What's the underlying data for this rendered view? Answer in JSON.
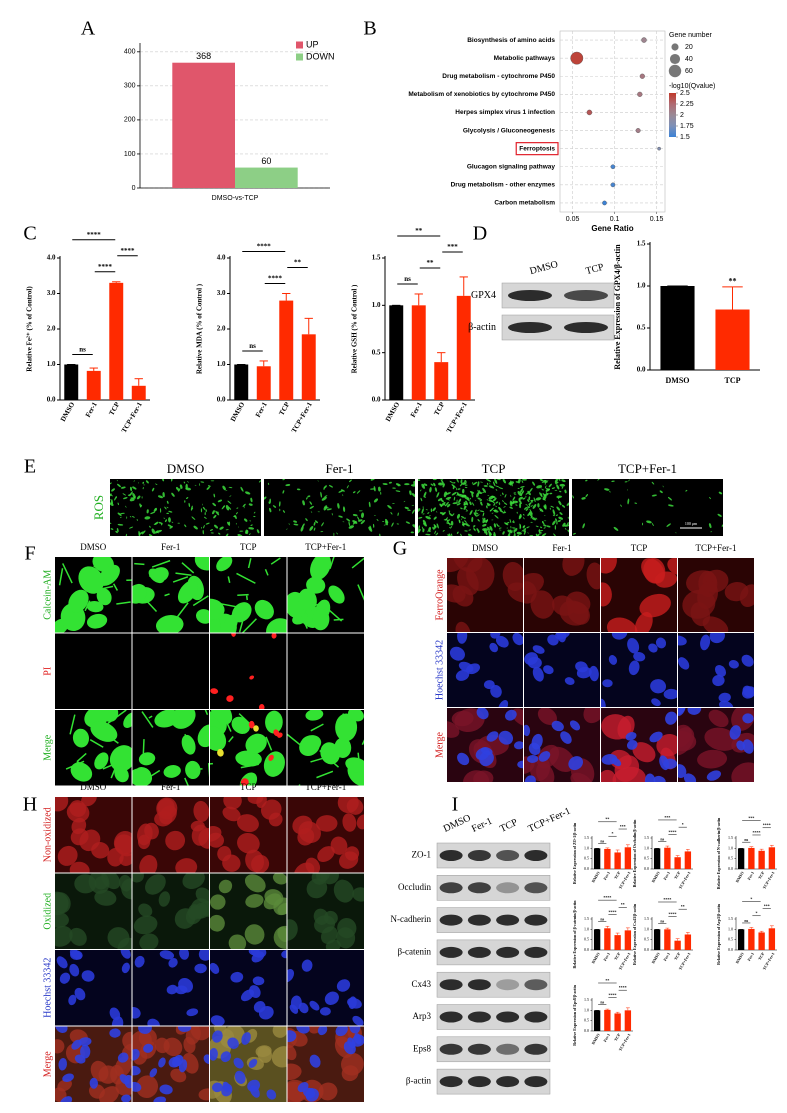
{
  "figure": {
    "panel_letters": [
      "A",
      "B",
      "C",
      "D",
      "E",
      "F",
      "G",
      "H",
      "I"
    ],
    "D": {
      "columns": [
        "DMSO",
        "TCP"
      ],
      "rows": [
        "GPX4",
        "β-actin"
      ]
    },
    "E": {
      "columns": [
        "DMSO",
        "Fer-1",
        "TCP",
        "TCP+Fer-1"
      ],
      "rows": [
        "ROS"
      ],
      "scale": "100 μm"
    },
    "F": {
      "columns": [
        "DMSO",
        "Fer-1",
        "TCP",
        "TCP+Fer-1"
      ],
      "rows": [
        "Calcein-AM",
        "PI",
        "Merge"
      ]
    },
    "G": {
      "columns": [
        "DMSO",
        "Fer-1",
        "TCP",
        "TCP+Fer-1"
      ],
      "rows": [
        "FerroOrange",
        "Hoechst 33342",
        "Merge"
      ]
    },
    "H": {
      "columns": [
        "DMSO",
        "Fer-1",
        "TCP",
        "TCP+Fer-1"
      ],
      "rows": [
        "Non-oxidized",
        "Oxidized",
        "Hoechst 33342",
        "Merge"
      ]
    },
    "I": {
      "columns": [
        "DMSO",
        "Fer-1",
        "TCP",
        "TCP+Fer-1"
      ],
      "rows": [
        "ZO-1",
        "Occludin",
        "N-cadherin",
        "β-catenin",
        "Cx43",
        "Arp3",
        "Eps8",
        "β-actin"
      ]
    }
  },
  "chart_data": [
    {
      "type": "bar",
      "categories": [
        "DMSO-vs-TCP"
      ],
      "series": [
        {
          "name": "UP",
          "color": "#e0566b",
          "values": [
            368
          ]
        },
        {
          "name": "DOWN",
          "color": "#8dcf86",
          "values": [
            60
          ]
        }
      ],
      "ylim": [
        0,
        420
      ],
      "yticks": [
        0,
        100,
        200,
        300,
        400
      ],
      "grid": true,
      "show_values": true,
      "legend": "top-right"
    },
    {
      "type": "bubble",
      "x_label": "Gene Ratio",
      "categories": [
        "Biosynthesis of amino acids",
        "Metabolic pathways",
        "Drug metabolism - cytochrome P450",
        "Metabolism of xenobiotics by cytochrome P450",
        "Herpes simplex virus 1 infection",
        "Glycolysis / Gluconeogenesis",
        "Ferroptosis",
        "Glucagon signaling pathway",
        "Drug metabolism - other enzymes",
        "Carbon metabolism"
      ],
      "x": [
        0.135,
        0.055,
        0.133,
        0.13,
        0.07,
        0.128,
        0.153,
        0.098,
        0.098,
        0.088
      ],
      "sizes": [
        10,
        60,
        9,
        9,
        10,
        8,
        4,
        7,
        7,
        7
      ],
      "qvalues": [
        2.05,
        2.45,
        2.15,
        2.15,
        2.35,
        2.1,
        1.8,
        1.55,
        1.55,
        1.5
      ],
      "xlim": [
        0.035,
        0.16
      ],
      "xticks": [
        0.05,
        0.1,
        0.15
      ],
      "grid": true,
      "highlight": 6,
      "size_legend": {
        "title": "Gene number",
        "values": [
          20,
          40,
          60
        ]
      },
      "color_legend": {
        "title": "-log10(Qvalue)",
        "ticks": [
          2.5,
          2.25,
          2,
          1.75,
          1.5
        ],
        "colors": [
          "#c0392b",
          "#b06a72",
          "#9a8a96",
          "#7d90b8",
          "#3b82d6"
        ]
      }
    },
    {
      "type": "bar",
      "y_label": "Relative Fe²⁺ (% of Control)",
      "categories": [
        "DMSO",
        "Fer-1",
        "TCP",
        "TCP+Fer-1"
      ],
      "values": [
        1.0,
        0.82,
        3.3,
        0.4
      ],
      "errors": [
        0,
        0.08,
        0.03,
        0.2
      ],
      "colors": [
        "#000000",
        "#ff2a00",
        "#ff2a00",
        "#ff2a00"
      ],
      "ylim": [
        0,
        4
      ],
      "yticks": [
        {
          "value": 0,
          "label": "0.0"
        },
        {
          "value": 1,
          "label": "1.0"
        },
        {
          "value": 2,
          "label": "2.0"
        },
        {
          "value": 3,
          "label": "3.0"
        },
        {
          "value": 4,
          "label": "4.0"
        }
      ],
      "brackets": [
        {
          "between": [
            0,
            2
          ],
          "label": "****"
        },
        {
          "between": [
            0,
            1
          ],
          "label": "ns"
        },
        {
          "between": [
            1,
            2
          ],
          "label": "****"
        },
        {
          "between": [
            2,
            3
          ],
          "label": "****"
        }
      ]
    },
    {
      "type": "bar",
      "y_label": "Relative MDA (% of Control )",
      "categories": [
        "DMSO",
        "Fer-1",
        "TCP",
        "TCP+Fer-1"
      ],
      "values": [
        1.0,
        0.95,
        2.8,
        1.85
      ],
      "errors": [
        0,
        0.15,
        0.2,
        0.45
      ],
      "colors": [
        "#000000",
        "#ff2a00",
        "#ff2a00",
        "#ff2a00"
      ],
      "ylim": [
        0,
        4
      ],
      "yticks": [
        {
          "value": 0,
          "label": "0.0"
        },
        {
          "value": 1,
          "label": "1.0"
        },
        {
          "value": 2,
          "label": "2.0"
        },
        {
          "value": 3,
          "label": "3.0"
        },
        {
          "value": 4,
          "label": "4.0"
        }
      ],
      "brackets": [
        {
          "between": [
            0,
            2
          ],
          "label": "****"
        },
        {
          "between": [
            0,
            1
          ],
          "label": "ns"
        },
        {
          "between": [
            1,
            2
          ],
          "label": "****"
        },
        {
          "between": [
            2,
            3
          ],
          "label": "**"
        }
      ]
    },
    {
      "type": "bar",
      "y_label": "Relative GSH (% of Control )",
      "categories": [
        "DMSO",
        "Fer-1",
        "TCP",
        "TCP+Fer-1"
      ],
      "values": [
        1.0,
        1.0,
        0.4,
        1.1
      ],
      "errors": [
        0,
        0.12,
        0.1,
        0.2
      ],
      "colors": [
        "#000000",
        "#ff2a00",
        "#ff2a00",
        "#ff2a00"
      ],
      "ylim": [
        0,
        1.5
      ],
      "yticks": [
        {
          "value": 0,
          "label": "0.0"
        },
        0.5,
        {
          "value": 1,
          "label": "1.0"
        },
        1.5
      ],
      "brackets": [
        {
          "between": [
            0,
            2
          ],
          "label": "**"
        },
        {
          "between": [
            0,
            1
          ],
          "label": "ns"
        },
        {
          "between": [
            1,
            2
          ],
          "label": "**"
        },
        {
          "between": [
            2,
            3
          ],
          "label": "***"
        }
      ]
    },
    {
      "type": "bar",
      "y_label": "Relative Expression of GPX4/β-actin",
      "categories": [
        "DMSO",
        "TCP"
      ],
      "values": [
        1.0,
        0.72
      ],
      "errors": [
        0,
        0.27
      ],
      "colors": [
        "#000000",
        "#ff2a00"
      ],
      "ylim": [
        0,
        1.5
      ],
      "yticks": [
        {
          "value": 0,
          "label": "0.0"
        },
        0.5,
        {
          "value": 1,
          "label": "1.0"
        },
        1.5
      ],
      "annotations": [
        {
          "category": 1,
          "label": "**"
        }
      ]
    },
    {
      "type": "bar",
      "y_label": "Relative Expression of ZO-1/β-actin",
      "categories": [
        "DMSO",
        "Fer-1",
        "TCP",
        "TCP+Fer-1"
      ],
      "values": [
        1.0,
        0.97,
        0.8,
        1.05
      ],
      "errors": [
        0,
        0.05,
        0.12,
        0.12
      ],
      "colors": [
        "#000000",
        "#ff2a00",
        "#ff2a00",
        "#ff2a00"
      ],
      "ylim": [
        0,
        1.5
      ],
      "yticks": [
        {
          "value": 0,
          "label": "0.0"
        },
        0.5,
        {
          "value": 1,
          "label": "1.0"
        },
        1.5
      ],
      "brackets": [
        {
          "between": [
            0,
            2
          ],
          "label": "**"
        },
        {
          "between": [
            0,
            1
          ],
          "label": "ns"
        },
        {
          "between": [
            1,
            2
          ],
          "label": "*"
        },
        {
          "between": [
            2,
            3
          ],
          "label": "***"
        }
      ]
    },
    {
      "type": "bar",
      "y_label": "Relative Expression of Occludin/β-actin",
      "categories": [
        "DMSO",
        "Fer-1",
        "TCP",
        "TCP+Fer-1"
      ],
      "values": [
        1.0,
        1.03,
        0.57,
        0.85
      ],
      "errors": [
        0,
        0.08,
        0.08,
        0.1
      ],
      "colors": [
        "#000000",
        "#ff2a00",
        "#ff2a00",
        "#ff2a00"
      ],
      "ylim": [
        0,
        1.5
      ],
      "yticks": [
        {
          "value": 0,
          "label": "0.0"
        },
        0.5,
        {
          "value": 1,
          "label": "1.0"
        },
        1.5
      ],
      "brackets": [
        {
          "between": [
            0,
            2
          ],
          "label": "***"
        },
        {
          "between": [
            0,
            1
          ],
          "label": "ns"
        },
        {
          "between": [
            1,
            2
          ],
          "label": "****"
        },
        {
          "between": [
            2,
            3
          ],
          "label": "*"
        }
      ]
    },
    {
      "type": "bar",
      "y_label": "Relative Expression of N-cadherin/β-actin",
      "categories": [
        "DMSO",
        "Fer-1",
        "TCP",
        "TCP+Fer-1"
      ],
      "values": [
        1.0,
        1.02,
        0.88,
        1.05
      ],
      "errors": [
        0,
        0.06,
        0.08,
        0.1
      ],
      "colors": [
        "#000000",
        "#ff2a00",
        "#ff2a00",
        "#ff2a00"
      ],
      "ylim": [
        0,
        1.5
      ],
      "yticks": [
        {
          "value": 0,
          "label": "0.0"
        },
        0.5,
        {
          "value": 1,
          "label": "1.0"
        },
        1.5
      ],
      "brackets": [
        {
          "between": [
            0,
            2
          ],
          "label": "***"
        },
        {
          "between": [
            0,
            1
          ],
          "label": "ns"
        },
        {
          "between": [
            1,
            2
          ],
          "label": "****"
        },
        {
          "between": [
            2,
            3
          ],
          "label": "****"
        }
      ]
    },
    {
      "type": "bar",
      "y_label": "Relative Expression of β-catenin/β-actin",
      "categories": [
        "DMSO",
        "Fer-1",
        "TCP",
        "TCP+Fer-1"
      ],
      "values": [
        1.0,
        1.05,
        0.72,
        0.95
      ],
      "errors": [
        0,
        0.1,
        0.1,
        0.12
      ],
      "colors": [
        "#000000",
        "#ff2a00",
        "#ff2a00",
        "#ff2a00"
      ],
      "ylim": [
        0,
        1.5
      ],
      "yticks": [
        {
          "value": 0,
          "label": "0.0"
        },
        0.5,
        {
          "value": 1,
          "label": "1.0"
        },
        1.5
      ],
      "brackets": [
        {
          "between": [
            0,
            2
          ],
          "label": "****"
        },
        {
          "between": [
            0,
            1
          ],
          "label": "ns"
        },
        {
          "between": [
            1,
            2
          ],
          "label": "****"
        },
        {
          "between": [
            2,
            3
          ],
          "label": "**"
        }
      ]
    },
    {
      "type": "bar",
      "y_label": "Relative Expression of Cx43/β-actin",
      "categories": [
        "DMSO",
        "Fer-1",
        "TCP",
        "TCP+Fer-1"
      ],
      "values": [
        1.0,
        1.0,
        0.45,
        0.75
      ],
      "errors": [
        0,
        0.06,
        0.1,
        0.1
      ],
      "colors": [
        "#000000",
        "#ff2a00",
        "#ff2a00",
        "#ff2a00"
      ],
      "ylim": [
        0,
        1.5
      ],
      "yticks": [
        {
          "value": 0,
          "label": "0.0"
        },
        0.5,
        {
          "value": 1,
          "label": "1.0"
        },
        1.5
      ],
      "brackets": [
        {
          "between": [
            0,
            2
          ],
          "label": "****"
        },
        {
          "between": [
            0,
            1
          ],
          "label": "ns"
        },
        {
          "between": [
            1,
            2
          ],
          "label": "****"
        },
        {
          "between": [
            2,
            3
          ],
          "label": "**"
        }
      ]
    },
    {
      "type": "bar",
      "y_label": "Relative Expression of Arp3/β-actin",
      "categories": [
        "DMSO",
        "Fer-1",
        "TCP",
        "TCP+Fer-1"
      ],
      "values": [
        1.0,
        1.02,
        0.85,
        1.05
      ],
      "errors": [
        0,
        0.07,
        0.06,
        0.12
      ],
      "colors": [
        "#000000",
        "#ff2a00",
        "#ff2a00",
        "#ff2a00"
      ],
      "ylim": [
        0,
        1.5
      ],
      "yticks": [
        {
          "value": 0,
          "label": "0.0"
        },
        0.5,
        {
          "value": 1,
          "label": "1.0"
        },
        1.5
      ],
      "brackets": [
        {
          "between": [
            0,
            2
          ],
          "label": "*"
        },
        {
          "between": [
            0,
            1
          ],
          "label": "ns"
        },
        {
          "between": [
            1,
            2
          ],
          "label": "*"
        },
        {
          "between": [
            2,
            3
          ],
          "label": "***"
        }
      ]
    },
    {
      "type": "bar",
      "y_label": "Relative Expression of Eps8/β-actin",
      "categories": [
        "DMSO",
        "Fer-1",
        "TCP",
        "TCP+Fer-1"
      ],
      "values": [
        1.0,
        1.02,
        0.85,
        1.0
      ],
      "errors": [
        0,
        0.04,
        0.06,
        0.12
      ],
      "colors": [
        "#000000",
        "#ff2a00",
        "#ff2a00",
        "#ff2a00"
      ],
      "ylim": [
        0,
        1.5
      ],
      "yticks": [
        {
          "value": 0,
          "label": "0.0"
        },
        0.5,
        {
          "value": 1,
          "label": "1.0"
        },
        1.5
      ],
      "brackets": [
        {
          "between": [
            0,
            2
          ],
          "label": "**"
        },
        {
          "between": [
            0,
            1
          ],
          "label": "ns"
        },
        {
          "between": [
            1,
            2
          ],
          "label": "****"
        },
        {
          "between": [
            2,
            3
          ],
          "label": "****"
        }
      ]
    }
  ]
}
